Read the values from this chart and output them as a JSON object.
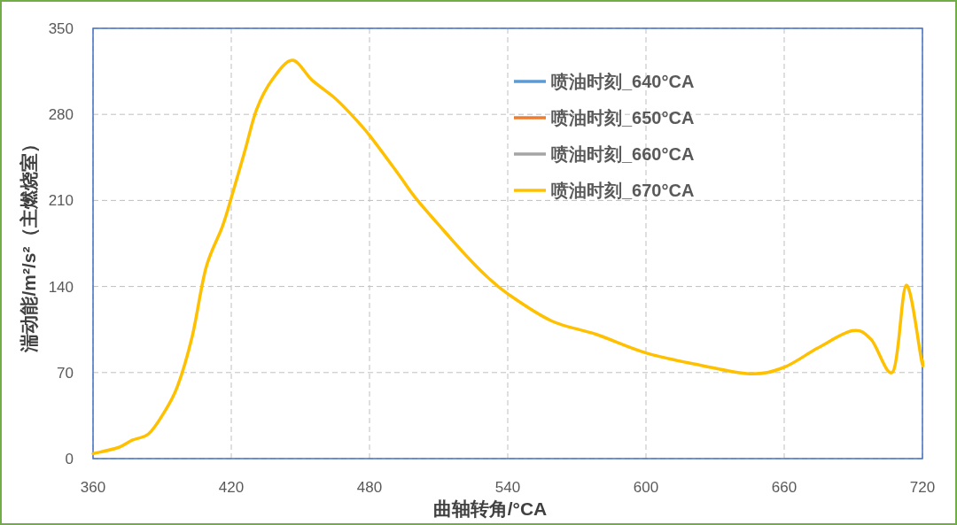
{
  "chart_data": {
    "type": "line",
    "xlabel": "曲轴转角/°CA",
    "ylabel": "湍动能/m²/s²（主燃烧室）",
    "x": [
      360,
      371,
      377,
      384,
      390,
      396.5,
      403,
      409,
      416,
      420,
      426,
      431,
      437.7,
      446.5,
      455,
      464.5,
      471,
      480,
      492.7,
      500,
      512,
      523.5,
      531,
      540,
      559,
      578.5,
      600,
      623.5,
      645,
      659.6,
      674.6,
      689.6,
      697.7,
      707.3,
      713,
      719.6,
      720
    ],
    "series": [
      {
        "name": "喷油时刻_640°CA",
        "color": "#5b9bd5",
        "values": [
          null,
          null,
          null,
          null,
          null,
          null,
          null,
          null,
          null,
          null,
          null,
          null,
          null,
          null,
          null,
          null,
          null,
          null,
          null,
          null,
          null,
          null,
          null,
          null,
          null,
          null,
          null,
          null,
          null,
          null,
          null,
          null,
          null,
          null,
          null,
          null,
          null
        ]
      },
      {
        "name": "喷油时刻_650°CA",
        "color": "#ed7d31",
        "values": [
          null,
          null,
          null,
          null,
          null,
          null,
          null,
          null,
          null,
          null,
          null,
          null,
          null,
          null,
          null,
          null,
          null,
          null,
          null,
          null,
          null,
          null,
          null,
          null,
          null,
          null,
          null,
          null,
          null,
          null,
          null,
          null,
          null,
          null,
          null,
          null,
          null
        ]
      },
      {
        "name": "喷油时刻_660°CA",
        "color": "#a5a5a5",
        "values": [
          null,
          null,
          null,
          null,
          null,
          null,
          null,
          null,
          null,
          null,
          null,
          null,
          null,
          null,
          null,
          null,
          null,
          null,
          null,
          null,
          null,
          null,
          null,
          null,
          null,
          null,
          null,
          null,
          null,
          null,
          null,
          null,
          null,
          null,
          null,
          null,
          null
        ]
      },
      {
        "name": "喷油时刻_670°CA",
        "color": "#ffc000",
        "values": [
          4,
          9,
          15,
          20,
          35,
          58,
          99,
          155,
          188,
          212,
          251,
          284,
          308,
          324,
          308,
          294,
          282,
          263,
          231,
          212,
          186,
          162,
          148,
          134,
          112,
          101,
          86,
          76,
          69,
          74,
          90,
          104,
          97,
          71,
          141,
          80,
          80
        ]
      }
    ],
    "xlim": [
      360,
      720
    ],
    "xticks": [
      360,
      420,
      480,
      540,
      600,
      660,
      720
    ],
    "ylim": [
      0,
      350
    ],
    "yticks": [
      0,
      70,
      140,
      210,
      280,
      350
    ],
    "grid": true,
    "legend": "top right",
    "line_style": "solid",
    "marker": "none"
  }
}
